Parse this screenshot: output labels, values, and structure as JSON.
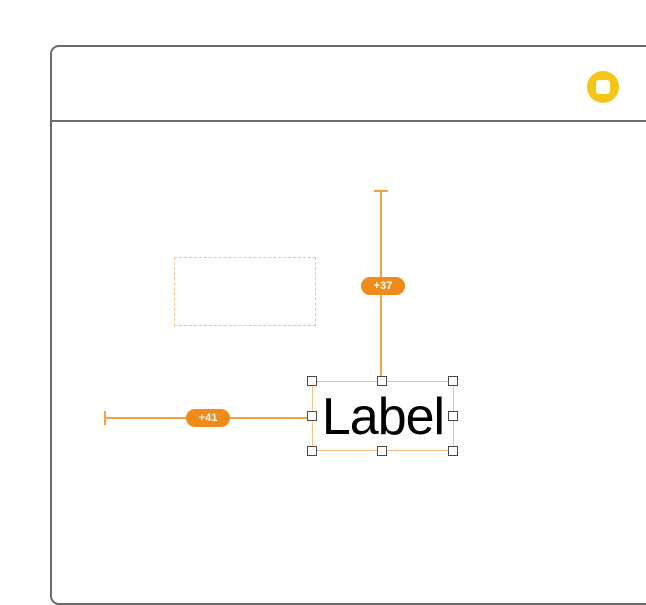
{
  "canvas": {
    "vc_icon": "view-controller-icon",
    "accent_color": "#f5a142",
    "badge_color": "#f08a1a",
    "vc_icon_color": "#f5c518"
  },
  "constraints": {
    "top_label": "+37",
    "leading_label": "+41"
  },
  "label_element": {
    "text": "Label"
  }
}
